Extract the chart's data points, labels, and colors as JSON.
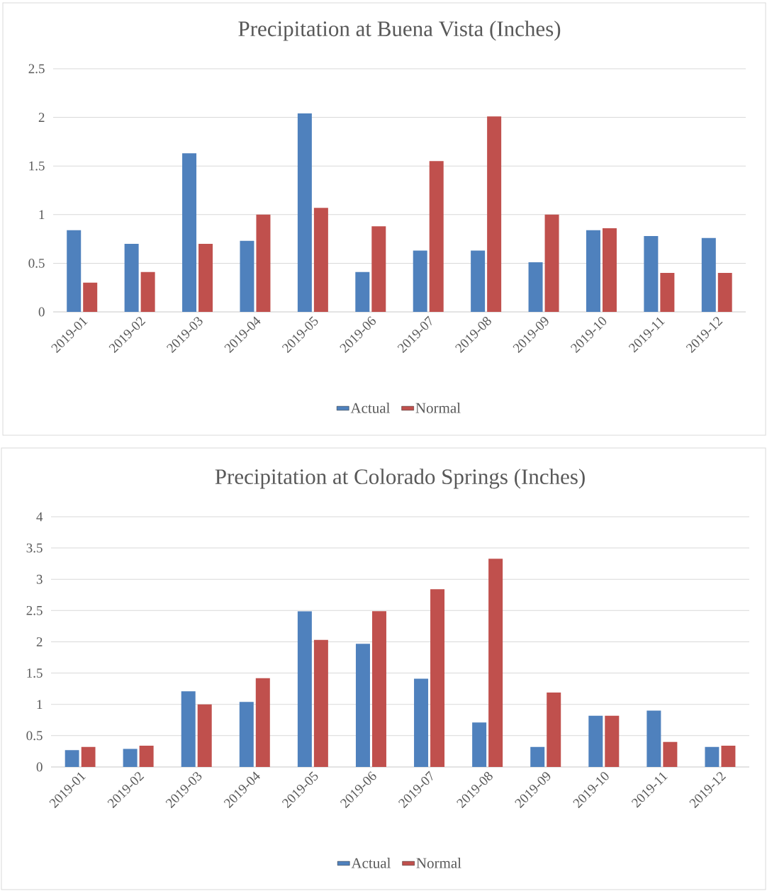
{
  "chart_data": [
    {
      "type": "bar",
      "title": "Precipitation at Buena Vista (Inches)",
      "categories": [
        "2019-01",
        "2019-02",
        "2019-03",
        "2019-04",
        "2019-05",
        "2019-06",
        "2019-07",
        "2019-08",
        "2019-09",
        "2019-10",
        "2019-11",
        "2019-12"
      ],
      "series": [
        {
          "name": "Actual",
          "color": "#4f81bd",
          "values": [
            0.84,
            0.7,
            1.63,
            0.73,
            2.04,
            0.41,
            0.63,
            0.63,
            0.51,
            0.84,
            0.78,
            0.76
          ]
        },
        {
          "name": "Normal",
          "color": "#c0504d",
          "values": [
            0.3,
            0.41,
            0.7,
            1.0,
            1.07,
            0.88,
            1.55,
            2.01,
            1.0,
            0.86,
            0.4,
            0.4
          ]
        }
      ],
      "ylim": [
        0,
        2.5
      ],
      "yticks": [
        0,
        0.5,
        1,
        1.5,
        2,
        2.5
      ],
      "grid": "y",
      "legend": "bottom"
    },
    {
      "type": "bar",
      "title": "Precipitation at Colorado Springs (Inches)",
      "categories": [
        "2019-01",
        "2019-02",
        "2019-03",
        "2019-04",
        "2019-05",
        "2019-06",
        "2019-07",
        "2019-08",
        "2019-09",
        "2019-10",
        "2019-11",
        "2019-12"
      ],
      "series": [
        {
          "name": "Actual",
          "color": "#4f81bd",
          "values": [
            0.27,
            0.29,
            1.21,
            1.04,
            2.49,
            1.97,
            1.41,
            0.71,
            0.32,
            0.82,
            0.9,
            0.32
          ]
        },
        {
          "name": "Normal",
          "color": "#c0504d",
          "values": [
            0.32,
            0.34,
            1.0,
            1.42,
            2.03,
            2.49,
            2.84,
            3.33,
            1.19,
            0.82,
            0.4,
            0.34
          ]
        }
      ],
      "ylim": [
        0,
        4
      ],
      "yticks": [
        0,
        0.5,
        1,
        1.5,
        2,
        2.5,
        3,
        3.5,
        4
      ],
      "grid": "y",
      "legend": "bottom"
    }
  ]
}
